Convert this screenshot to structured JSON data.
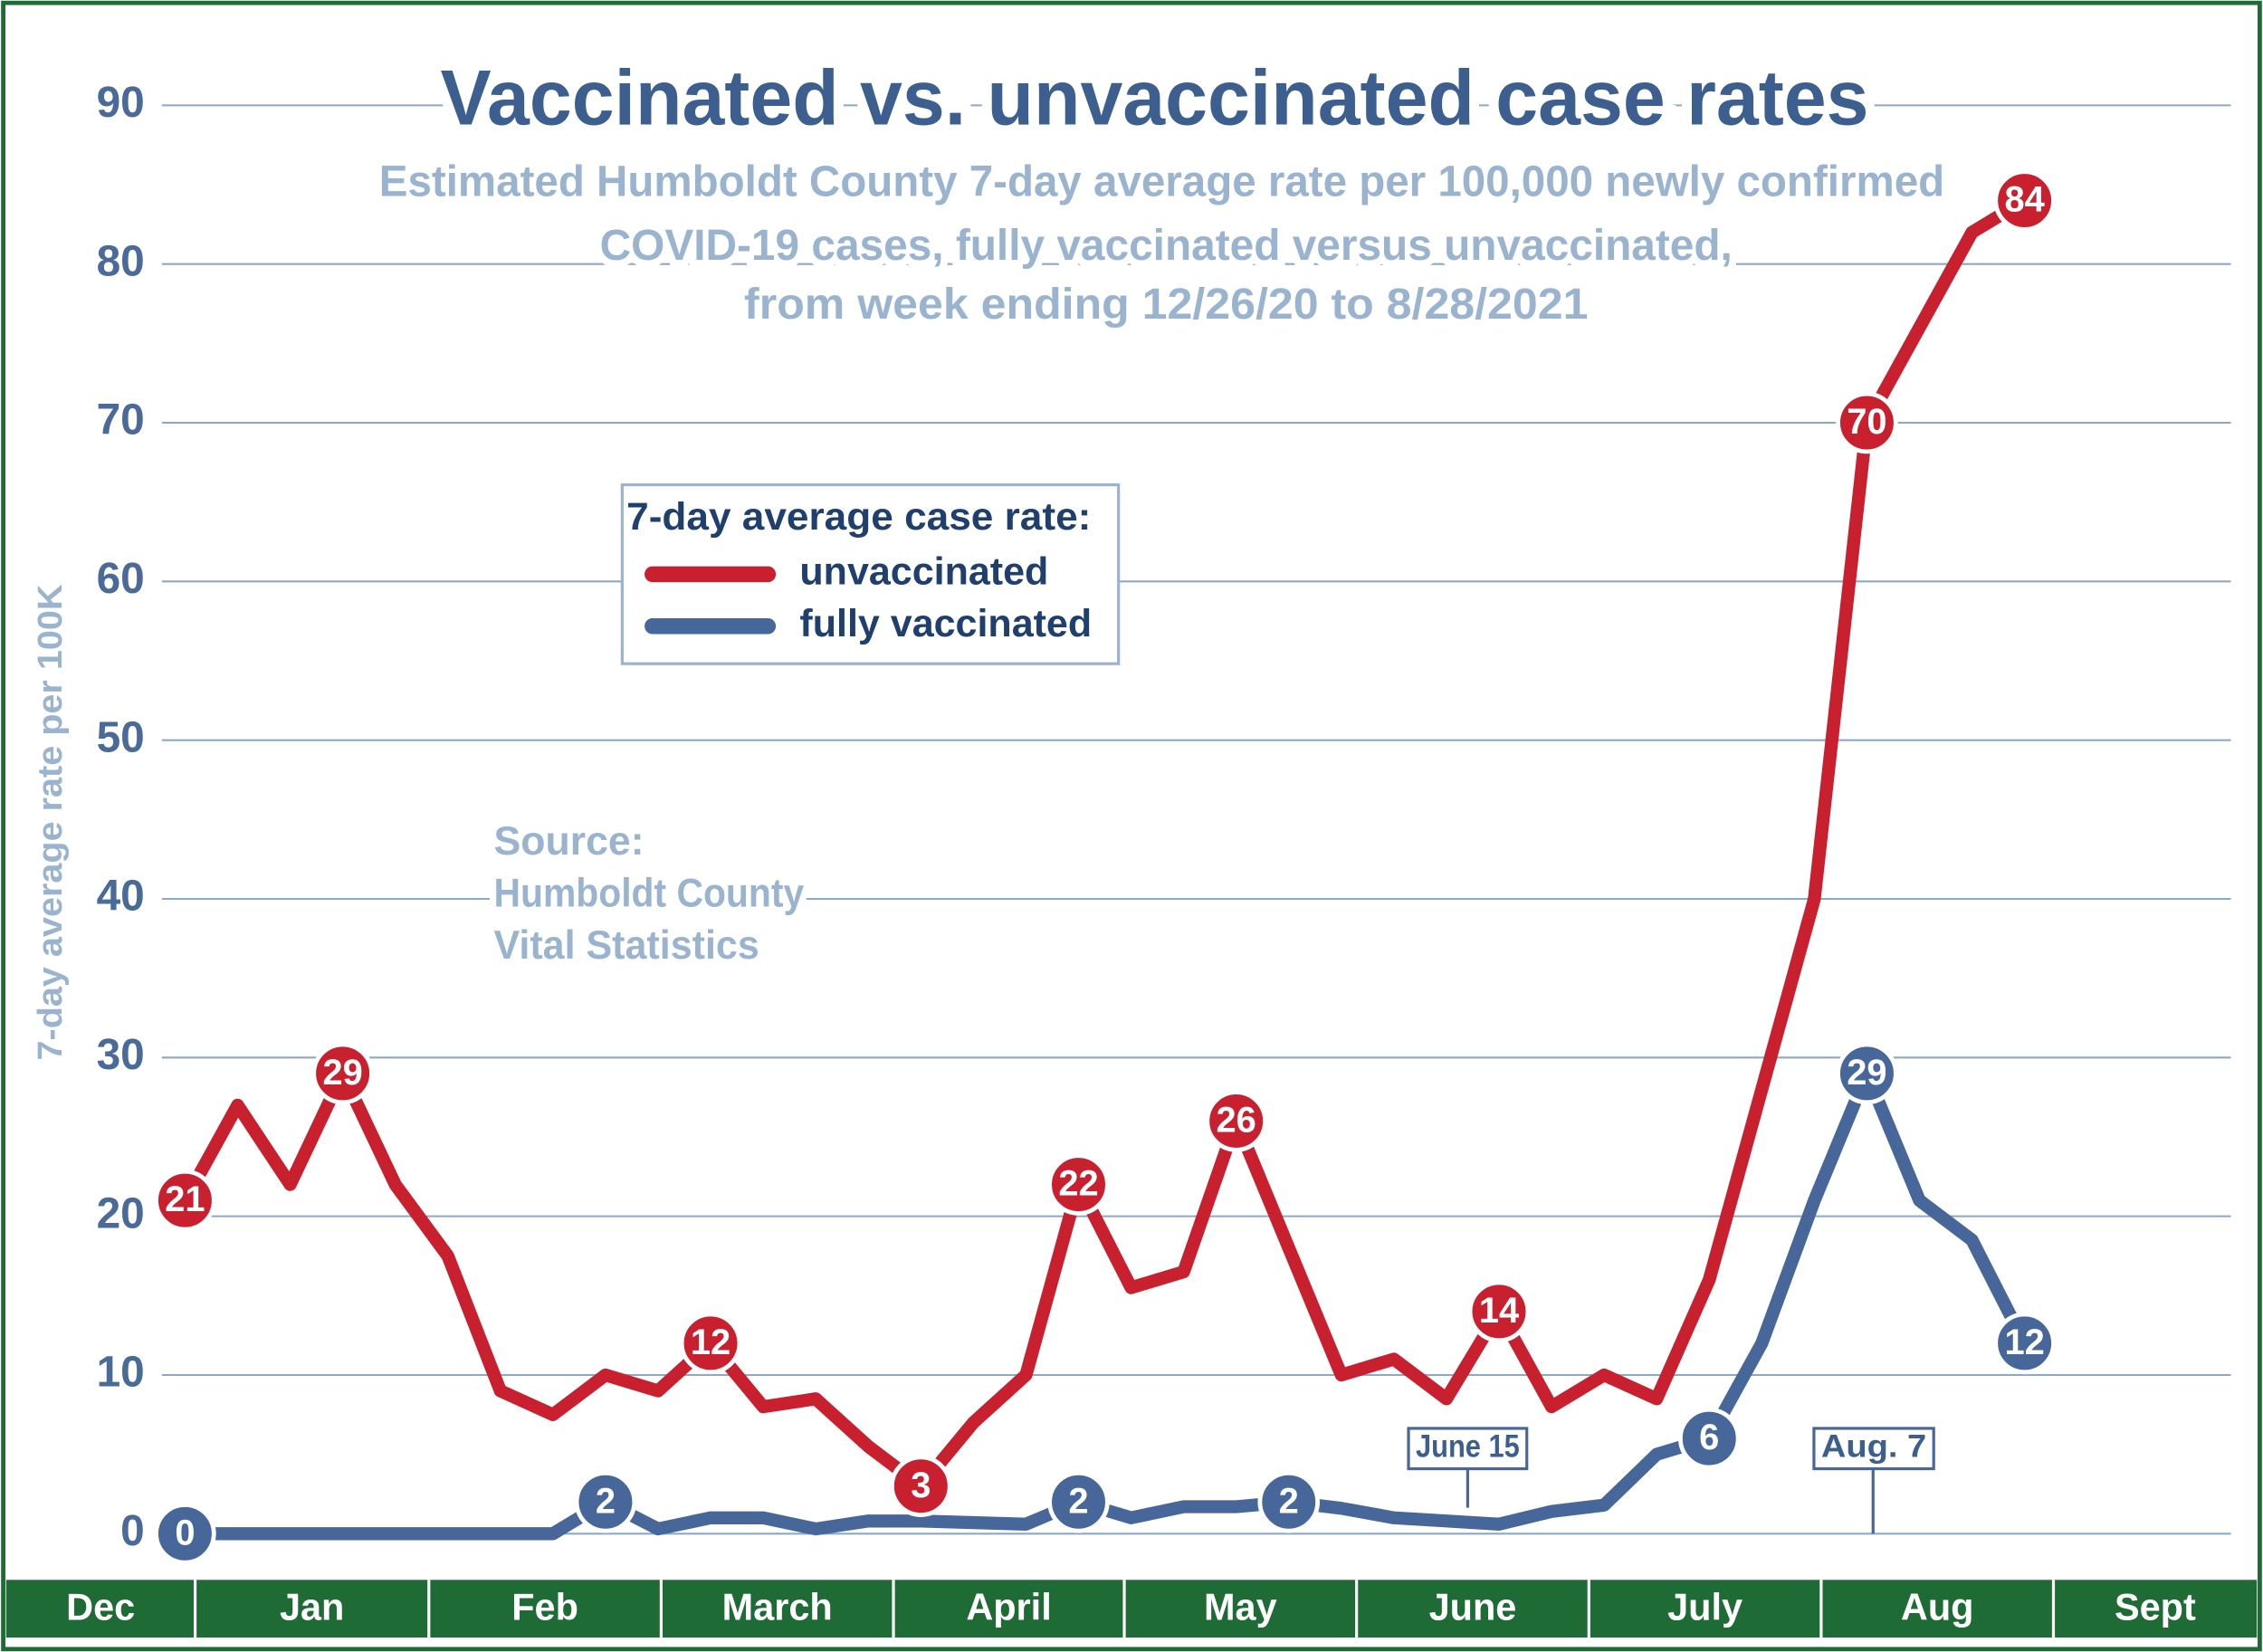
{
  "chart_data": {
    "type": "line",
    "title": "Vaccinated vs. unvaccinated case rates",
    "subtitle": [
      "Estimated Humboldt County 7-day average rate per 100,000 newly confirmed",
      "COVID-19 cases,  fully vaccinated versus unvaccinated,",
      "from week ending 12/26/20 to 8/28/2021"
    ],
    "y_label": "7-day average rate per 100K",
    "legend_title": "7-day average case rate:",
    "source": [
      "Source:",
      "Humboldt County",
      "Vital Statistics"
    ],
    "months": [
      "Dec",
      "Jan",
      "Feb",
      "March",
      "April",
      "May",
      "June",
      "July",
      "Aug",
      "Sept"
    ],
    "annotations": [
      "June 15",
      "Aug. 7"
    ],
    "ylim": [
      -2,
      92
    ],
    "yticks": [
      0,
      10,
      20,
      30,
      40,
      50,
      60,
      70,
      80,
      90
    ],
    "grid": true,
    "series": [
      {
        "name": "unvaccinated",
        "color": "#c8202f",
        "values": [
          21,
          27,
          22,
          29,
          22,
          17.5,
          9,
          7.5,
          10,
          9,
          12,
          8,
          8.5,
          5.5,
          3,
          7,
          10,
          22,
          15.5,
          16.5,
          26,
          18,
          10,
          11,
          8.5,
          14,
          8,
          10,
          8.5,
          16,
          28,
          40,
          70,
          76,
          82,
          84
        ],
        "value_labels": [
          "21",
          null,
          null,
          "29",
          null,
          null,
          null,
          null,
          null,
          null,
          "12",
          null,
          null,
          null,
          "3",
          null,
          null,
          "22",
          null,
          null,
          "26",
          null,
          null,
          null,
          null,
          "14",
          null,
          null,
          null,
          null,
          null,
          null,
          "70",
          null,
          null,
          "84"
        ]
      },
      {
        "name": "fully vaccinated",
        "color": "#47669a",
        "values": [
          0,
          0,
          0,
          0,
          0,
          0,
          0,
          0,
          2,
          0.3,
          1,
          1,
          0.3,
          0.8,
          0.8,
          0.7,
          0.6,
          2,
          1,
          1.7,
          1.7,
          2,
          1.6,
          1,
          0.8,
          0.6,
          1.4,
          1.8,
          5,
          6,
          12,
          21,
          29,
          21,
          18.5,
          12
        ],
        "value_labels": [
          "0",
          null,
          null,
          null,
          null,
          null,
          null,
          null,
          "2",
          null,
          null,
          null,
          null,
          null,
          null,
          null,
          null,
          "2",
          null,
          null,
          null,
          "2",
          null,
          null,
          null,
          null,
          null,
          null,
          null,
          "6",
          null,
          null,
          "29",
          null,
          null,
          "12"
        ]
      }
    ]
  }
}
